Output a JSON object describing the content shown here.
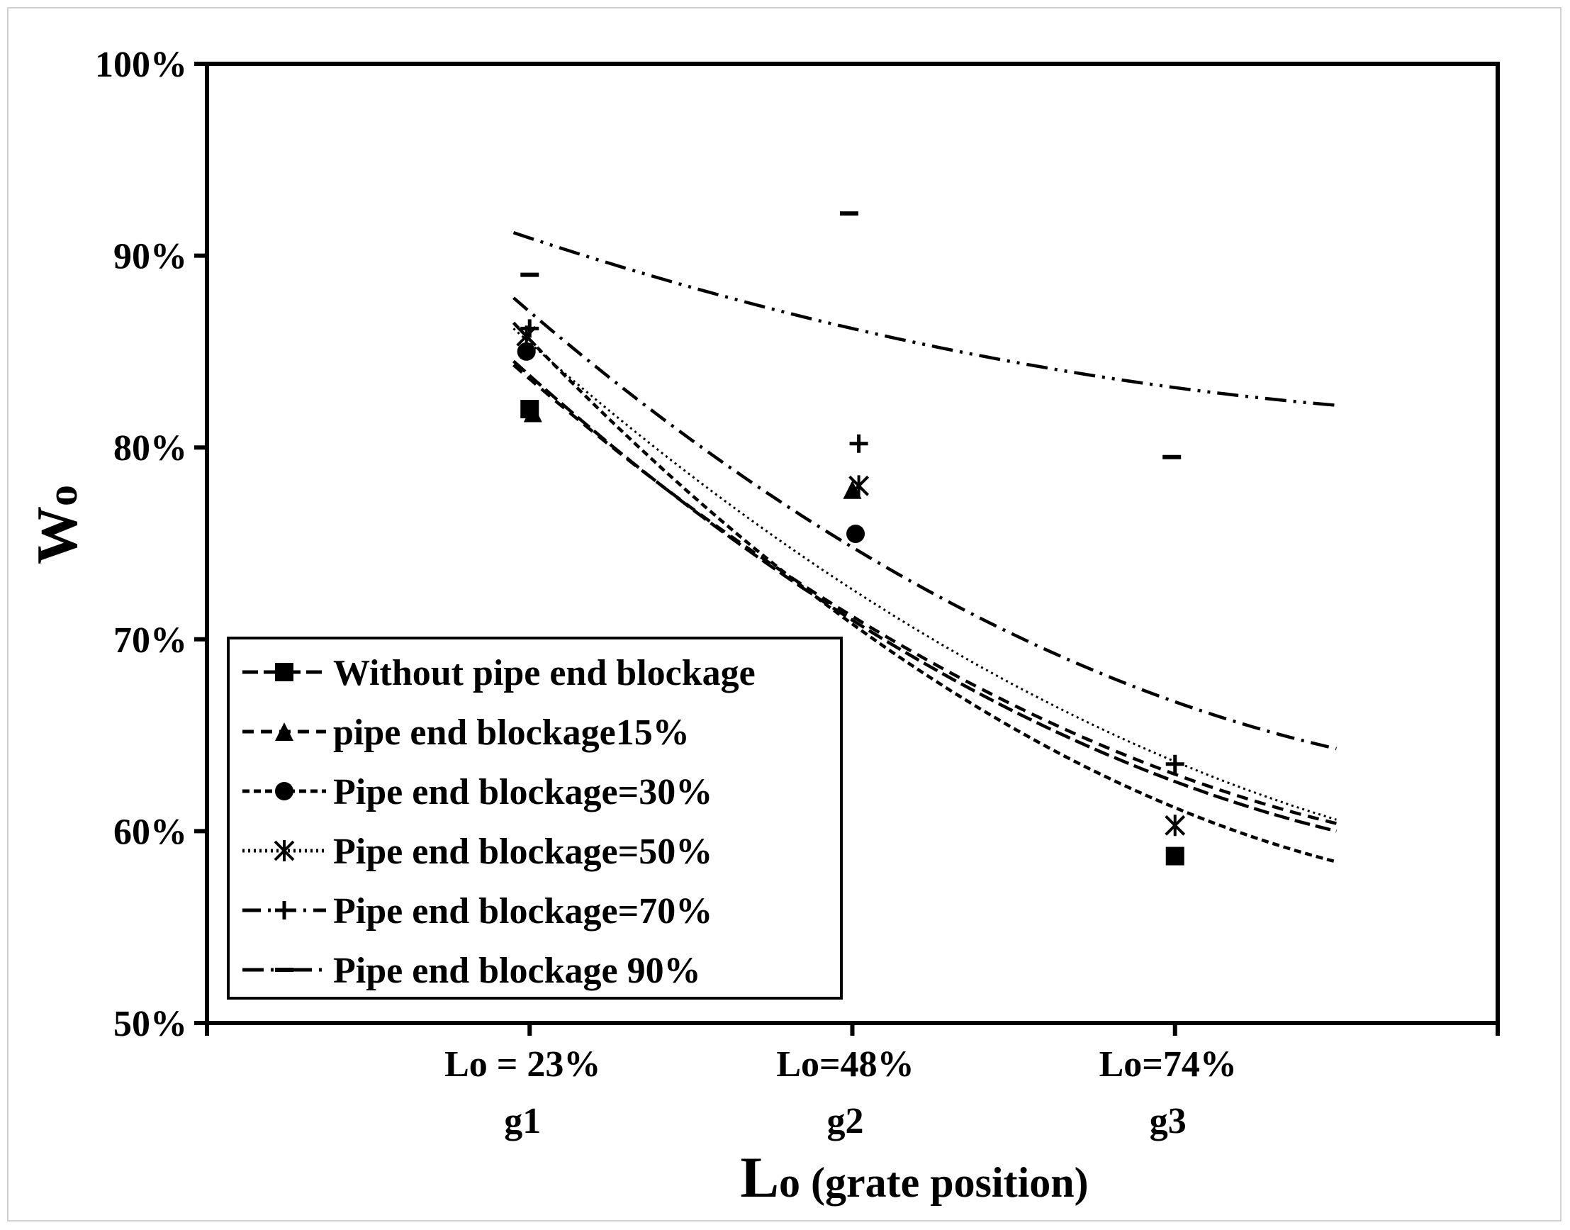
{
  "chart_data": {
    "type": "scatter",
    "x_categories": [
      {
        "line1": "Lo = 23%",
        "line2": "g1"
      },
      {
        "line1": "Lo=48%",
        "line2": "g2"
      },
      {
        "line1": "Lo=74%",
        "line2": "g3"
      }
    ],
    "xlabel": {
      "main": "L",
      "sub": "o",
      "rest": " (grate position)"
    },
    "ylabel": {
      "main": "W",
      "sub": "o"
    },
    "ylim": [
      0.5,
      1.0
    ],
    "xlim": [
      0,
      4
    ],
    "yticks": [
      {
        "v": 0.5,
        "label": "50%"
      },
      {
        "v": 0.6,
        "label": "60%"
      },
      {
        "v": 0.7,
        "label": "70%"
      },
      {
        "v": 0.8,
        "label": "80%"
      },
      {
        "v": 0.9,
        "label": "90%"
      },
      {
        "v": 1.0,
        "label": "100%"
      }
    ],
    "grid": false,
    "legend_position": "bottom-left",
    "series": [
      {
        "name": "Without pipe end blockage",
        "marker": "square",
        "dash": "22 8",
        "points": [
          {
            "x": 1,
            "y": 0.82
          },
          {
            "x": 2,
            "y": null
          },
          {
            "x": 3,
            "y": 0.587
          }
        ],
        "trend": [
          {
            "x": 0.95,
            "y": 0.845
          },
          {
            "x": 2,
            "y": 0.71
          },
          {
            "x": 3.5,
            "y": 0.6
          }
        ]
      },
      {
        "name": "pipe end blockage15%",
        "marker": "triangle",
        "dash": "16 10",
        "points": [
          {
            "x": 1.01,
            "y": 0.818
          },
          {
            "x": 2,
            "y": 0.778
          },
          {
            "x": 3,
            "y": null
          }
        ],
        "trend": [
          {
            "x": 0.95,
            "y": 0.843
          },
          {
            "x": 2,
            "y": 0.712
          },
          {
            "x": 3.5,
            "y": 0.604
          }
        ]
      },
      {
        "name": "Pipe end blockage=30%",
        "marker": "circle",
        "dash": "10 6",
        "points": [
          {
            "x": 0.99,
            "y": 0.85
          },
          {
            "x": 2.01,
            "y": 0.755
          },
          {
            "x": 3,
            "y": null
          }
        ],
        "trend": [
          {
            "x": 0.95,
            "y": 0.865
          },
          {
            "x": 2,
            "y": 0.708
          },
          {
            "x": 3.5,
            "y": 0.584
          }
        ]
      },
      {
        "name": "Pipe end blockage=50%",
        "marker": "asterisk",
        "dash": "3 5",
        "points": [
          {
            "x": 0.99,
            "y": 0.858
          },
          {
            "x": 2.02,
            "y": 0.78
          },
          {
            "x": 3,
            "y": 0.603
          }
        ],
        "trend": [
          {
            "x": 0.95,
            "y": 0.862
          },
          {
            "x": 2,
            "y": 0.726
          },
          {
            "x": 3.5,
            "y": 0.606
          }
        ]
      },
      {
        "name": "Pipe end blockage=70%",
        "marker": "plus",
        "dash": "26 10 4 10",
        "points": [
          {
            "x": 1.0,
            "y": 0.862
          },
          {
            "x": 2.02,
            "y": 0.802
          },
          {
            "x": 3,
            "y": 0.635
          }
        ],
        "trend": [
          {
            "x": 0.95,
            "y": 0.878
          },
          {
            "x": 2,
            "y": 0.748
          },
          {
            "x": 3.5,
            "y": 0.643
          }
        ]
      },
      {
        "name": "Pipe end blockage 90%",
        "marker": "dash",
        "dash": "30 10 4 10 4 10",
        "points": [
          {
            "x": 1.0,
            "y": 0.89
          },
          {
            "x": 1.99,
            "y": 0.922
          },
          {
            "x": 2.99,
            "y": 0.795
          }
        ],
        "trend": [
          {
            "x": 0.95,
            "y": 0.912
          },
          {
            "x": 2,
            "y": 0.862
          },
          {
            "x": 3.5,
            "y": 0.822
          }
        ]
      }
    ]
  }
}
